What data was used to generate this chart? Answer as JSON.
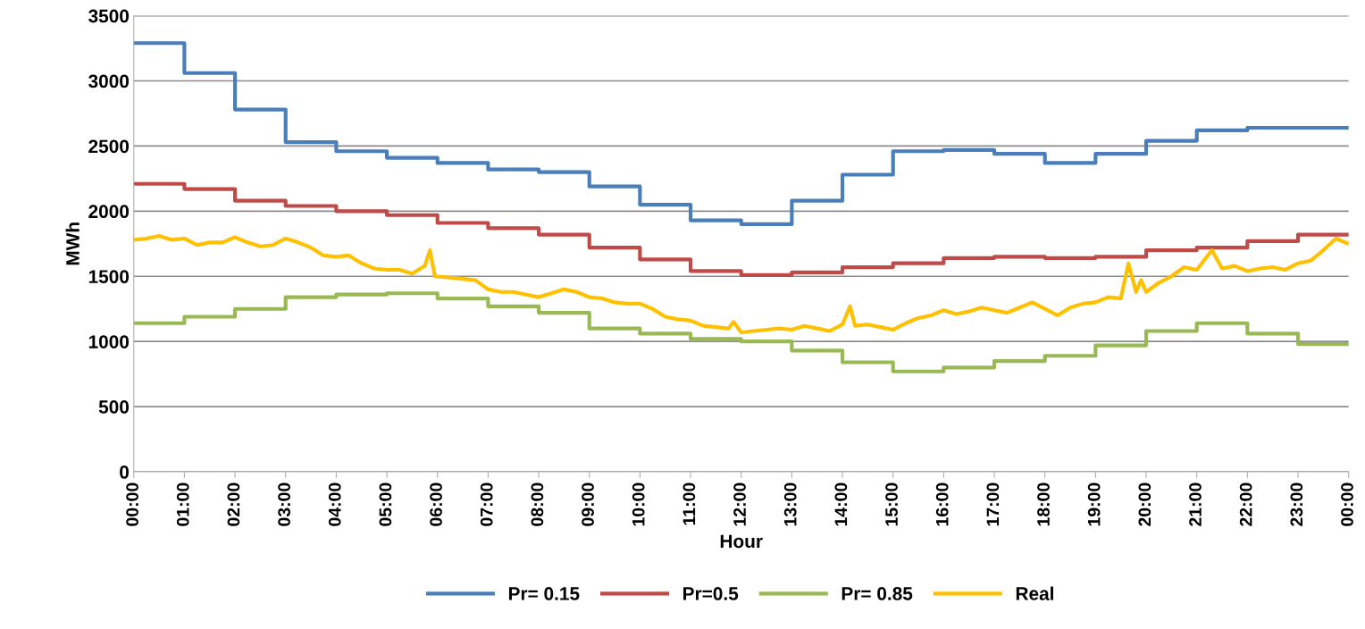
{
  "chart_data": {
    "type": "step",
    "xlabel": "Hour",
    "ylabel": "MWh",
    "xlim": [
      0,
      24
    ],
    "ylim": [
      0,
      3500
    ],
    "yticks": [
      0,
      500,
      1000,
      1500,
      2000,
      2500,
      3000,
      3500
    ],
    "xticks": [
      {
        "value": 0,
        "label": "00:00"
      },
      {
        "value": 1,
        "label": "01:00"
      },
      {
        "value": 2,
        "label": "02:00"
      },
      {
        "value": 3,
        "label": "03:00"
      },
      {
        "value": 4,
        "label": "04:00"
      },
      {
        "value": 5,
        "label": "05:00"
      },
      {
        "value": 6,
        "label": "06:00"
      },
      {
        "value": 7,
        "label": "07:00"
      },
      {
        "value": 8,
        "label": "08:00"
      },
      {
        "value": 9,
        "label": "09:00"
      },
      {
        "value": 10,
        "label": "10:00"
      },
      {
        "value": 11,
        "label": "11:00"
      },
      {
        "value": 12,
        "label": "12:00"
      },
      {
        "value": 13,
        "label": "13:00"
      },
      {
        "value": 14,
        "label": "14:00"
      },
      {
        "value": 15,
        "label": "15:00"
      },
      {
        "value": 16,
        "label": "16:00"
      },
      {
        "value": 17,
        "label": "17:00"
      },
      {
        "value": 18,
        "label": "18:00"
      },
      {
        "value": 19,
        "label": "19:00"
      },
      {
        "value": 20,
        "label": "20:00"
      },
      {
        "value": 21,
        "label": "21:00"
      },
      {
        "value": 22,
        "label": "22:00"
      },
      {
        "value": 23,
        "label": "23:00"
      },
      {
        "value": 24,
        "label": "00:00"
      }
    ],
    "x": [
      0,
      1,
      2,
      3,
      4,
      5,
      6,
      7,
      8,
      9,
      10,
      11,
      12,
      13,
      14,
      15,
      16,
      17,
      18,
      19,
      20,
      21,
      22,
      23,
      24
    ],
    "grid": "y",
    "legend": "bottom",
    "marker": "none",
    "line_style": "solid",
    "series": [
      {
        "name": "Pr= 0.15",
        "color": "#4a7ebb",
        "values": [
          3290,
          3060,
          2780,
          2530,
          2460,
          2410,
          2370,
          2320,
          2300,
          2190,
          2050,
          1930,
          1900,
          2080,
          2280,
          2460,
          2470,
          2440,
          2370,
          2440,
          2540,
          2620,
          2640,
          2640,
          2640
        ]
      },
      {
        "name": "Pr=0.5",
        "color": "#be4b48",
        "values": [
          2210,
          2170,
          2080,
          2040,
          2000,
          1970,
          1910,
          1870,
          1820,
          1720,
          1630,
          1540,
          1510,
          1530,
          1570,
          1600,
          1640,
          1650,
          1640,
          1650,
          1700,
          1720,
          1770,
          1820,
          1820
        ]
      },
      {
        "name": "Pr= 0.85",
        "color": "#98b954",
        "values": [
          1140,
          1190,
          1250,
          1340,
          1360,
          1370,
          1330,
          1270,
          1220,
          1100,
          1060,
          1020,
          1000,
          930,
          840,
          770,
          800,
          850,
          890,
          970,
          1080,
          1140,
          1060,
          980,
          980
        ]
      },
      {
        "name": "Real",
        "type": "line",
        "color": "#ffc000",
        "x": [
          0,
          0.25,
          0.5,
          0.75,
          1,
          1.25,
          1.5,
          1.75,
          2,
          2.25,
          2.5,
          2.75,
          3,
          3.25,
          3.5,
          3.75,
          4,
          4.25,
          4.5,
          4.75,
          5,
          5.25,
          5.5,
          5.75,
          5.85,
          5.95,
          6.25,
          6.5,
          6.75,
          7,
          7.25,
          7.5,
          7.75,
          8,
          8.25,
          8.5,
          8.75,
          9,
          9.25,
          9.5,
          9.75,
          10,
          10.25,
          10.5,
          10.75,
          11,
          11.25,
          11.5,
          11.75,
          11.85,
          12,
          12.25,
          12.5,
          12.75,
          13,
          13.25,
          13.5,
          13.75,
          14,
          14.15,
          14.25,
          14.5,
          14.75,
          15,
          15.25,
          15.5,
          15.75,
          16,
          16.25,
          16.5,
          16.75,
          17,
          17.25,
          17.5,
          17.75,
          18,
          18.25,
          18.5,
          18.75,
          19,
          19.25,
          19.5,
          19.65,
          19.8,
          19.9,
          20,
          20.25,
          20.5,
          20.75,
          21,
          21.3,
          21.5,
          21.75,
          22,
          22.25,
          22.5,
          22.75,
          23,
          23.25,
          23.5,
          23.75,
          24
        ],
        "values": [
          1780,
          1790,
          1810,
          1780,
          1790,
          1740,
          1760,
          1760,
          1800,
          1760,
          1730,
          1740,
          1790,
          1760,
          1720,
          1660,
          1650,
          1660,
          1600,
          1560,
          1550,
          1550,
          1520,
          1580,
          1700,
          1500,
          1490,
          1480,
          1470,
          1400,
          1380,
          1380,
          1360,
          1340,
          1370,
          1400,
          1380,
          1340,
          1330,
          1300,
          1290,
          1290,
          1250,
          1190,
          1170,
          1160,
          1120,
          1110,
          1100,
          1150,
          1070,
          1080,
          1090,
          1100,
          1090,
          1120,
          1100,
          1080,
          1130,
          1270,
          1120,
          1130,
          1110,
          1090,
          1140,
          1180,
          1200,
          1240,
          1210,
          1230,
          1260,
          1240,
          1220,
          1260,
          1300,
          1250,
          1200,
          1260,
          1290,
          1300,
          1340,
          1330,
          1600,
          1380,
          1470,
          1380,
          1450,
          1500,
          1570,
          1550,
          1700,
          1560,
          1580,
          1540,
          1560,
          1570,
          1550,
          1600,
          1620,
          1700,
          1790,
          1750
        ]
      }
    ]
  }
}
